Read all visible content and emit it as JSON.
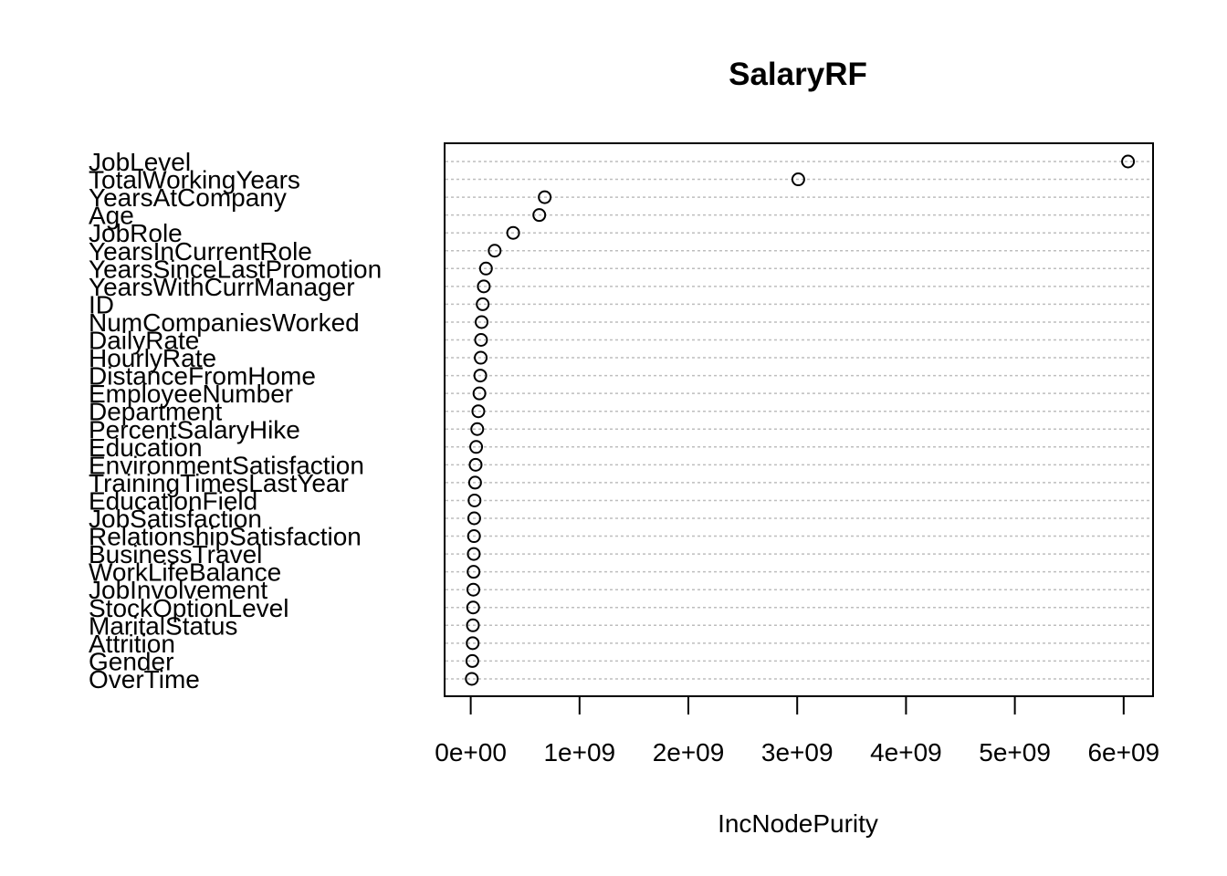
{
  "chart_data": {
    "type": "scatter",
    "title": "SalaryRF",
    "xlabel": "IncNodePurity",
    "ylabel": "",
    "xlim": [
      -240000000,
      6270000000
    ],
    "xticks": [
      0,
      1000000000,
      2000000000,
      3000000000,
      4000000000,
      5000000000,
      6000000000
    ],
    "xtick_labels": [
      "0e+00",
      "1e+09",
      "2e+09",
      "3e+09",
      "4e+09",
      "5e+09",
      "6e+09"
    ],
    "grid": "dotted horizontal",
    "categories": [
      "JobLevel",
      "TotalWorkingYears",
      "YearsAtCompany",
      "Age",
      "JobRole",
      "YearsInCurrentRole",
      "YearsSinceLastPromotion",
      "YearsWithCurrManager",
      "ID",
      "NumCompaniesWorked",
      "DailyRate",
      "HourlyRate",
      "DistanceFromHome",
      "EmployeeNumber",
      "Department",
      "PercentSalaryHike",
      "Education",
      "EnvironmentSatisfaction",
      "TrainingTimesLastYear",
      "EducationField",
      "JobSatisfaction",
      "RelationshipSatisfaction",
      "BusinessTravel",
      "WorkLifeBalance",
      "JobInvolvement",
      "StockOptionLevel",
      "MaritalStatus",
      "Attrition",
      "Gender",
      "OverTime"
    ],
    "values": [
      6040000000,
      3010000000,
      680000000,
      630000000,
      390000000,
      220000000,
      140000000,
      120000000,
      110000000,
      100000000,
      95000000,
      92000000,
      88000000,
      80000000,
      70000000,
      60000000,
      50000000,
      45000000,
      40000000,
      35000000,
      32000000,
      30000000,
      28000000,
      26000000,
      24000000,
      22000000,
      20000000,
      18000000,
      15000000,
      10000000
    ]
  }
}
